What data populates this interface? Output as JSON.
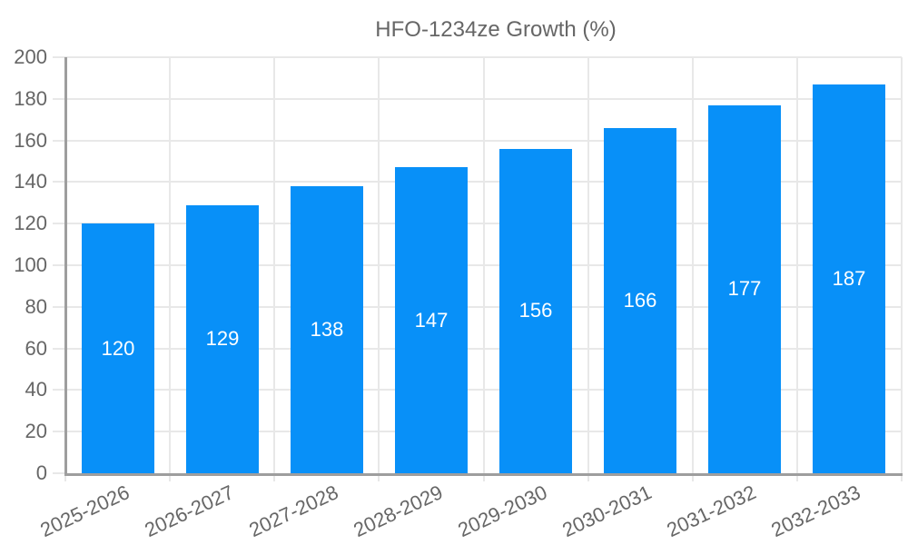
{
  "legend": {
    "label": "HFO-1234ze Growth (%)"
  },
  "colors": {
    "bar": "#0890f8",
    "grid": "#e8e8e8",
    "axis": "#9e9e9e",
    "tick_text": "#666666",
    "legend_text": "#666666",
    "value_label": "#ffffff",
    "background": "#ffffff"
  },
  "chart_data": {
    "type": "bar",
    "title": "",
    "xlabel": "",
    "ylabel": "",
    "categories": [
      "2025-2026",
      "2026-2027",
      "2027-2028",
      "2028-2029",
      "2029-2030",
      "2030-2031",
      "2031-2032",
      "2032-2033"
    ],
    "series": [
      {
        "name": "HFO-1234ze Growth (%)",
        "values": [
          120,
          129,
          138,
          147,
          156,
          166,
          177,
          187
        ]
      }
    ],
    "ylim": [
      0,
      200
    ],
    "ytick_step": 20,
    "yticks": [
      0,
      20,
      40,
      60,
      80,
      100,
      120,
      140,
      160,
      180,
      200
    ],
    "grid": true,
    "legend_position": "top-center",
    "bar_labels_shown": true,
    "bar_label_position": "center-inside",
    "x_label_rotation_deg": -25
  }
}
